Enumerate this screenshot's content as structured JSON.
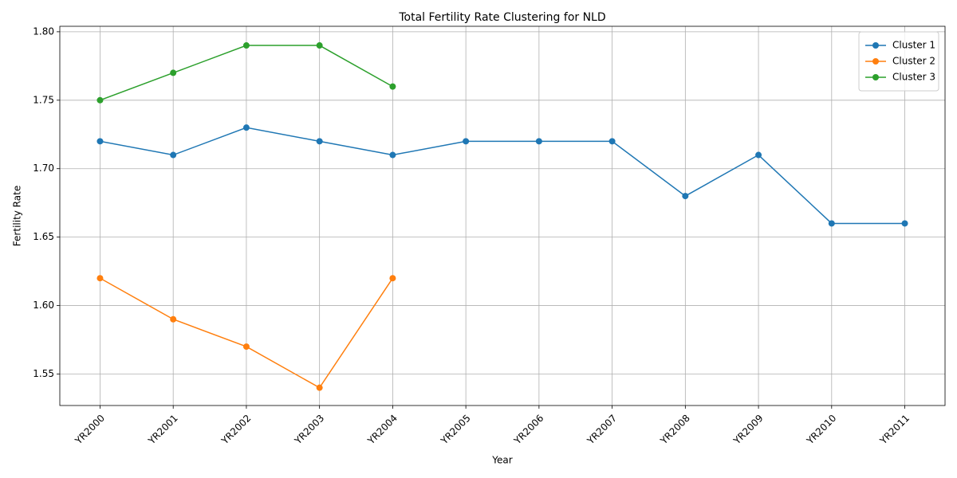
{
  "chart_data": {
    "type": "line",
    "title": "Total Fertility Rate Clustering for NLD",
    "xlabel": "Year",
    "ylabel": "Fertility Rate",
    "categories": [
      "YR2000",
      "YR2001",
      "YR2002",
      "YR2003",
      "YR2004",
      "YR2005",
      "YR2006",
      "YR2007",
      "YR2008",
      "YR2009",
      "YR2010",
      "YR2011"
    ],
    "series": [
      {
        "name": "Cluster 1",
        "color": "#1f77b4",
        "values": [
          1.72,
          1.71,
          1.73,
          1.72,
          1.71,
          1.72,
          1.72,
          1.72,
          1.68,
          1.71,
          1.66,
          1.66
        ]
      },
      {
        "name": "Cluster 2",
        "color": "#ff7f0e",
        "values": [
          1.62,
          1.59,
          1.57,
          1.54,
          1.62,
          null,
          null,
          null,
          null,
          null,
          null,
          null
        ]
      },
      {
        "name": "Cluster 3",
        "color": "#2ca02c",
        "values": [
          1.75,
          1.77,
          1.79,
          1.79,
          1.76,
          null,
          null,
          null,
          null,
          null,
          null,
          null
        ]
      }
    ],
    "ylim": [
      1.527,
      1.804
    ],
    "yticks": [
      1.55,
      {
        "value": 1.6,
        "label": "1.60"
      },
      1.65,
      {
        "value": 1.7,
        "label": "1.70"
      },
      1.75,
      {
        "value": 1.8,
        "label": "1.80"
      }
    ],
    "grid": true,
    "legend": "upper right",
    "markers": true
  }
}
